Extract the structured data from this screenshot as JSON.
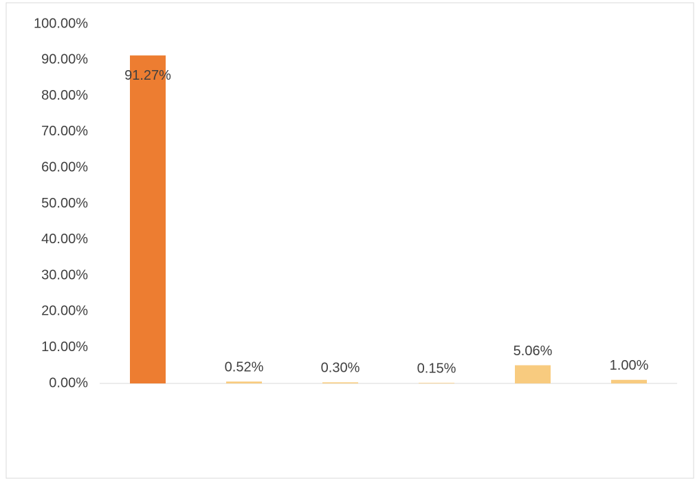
{
  "chart_data": {
    "type": "bar",
    "categories": [
      null,
      null,
      null,
      null,
      null,
      null
    ],
    "values": [
      91.27,
      0.52,
      0.3,
      0.15,
      5.06,
      1.0
    ],
    "value_labels": [
      "91.27%",
      "0.52%",
      "0.30%",
      "0.15%",
      "5.06%",
      "1.00%"
    ],
    "colors": [
      "#ed7d31",
      "#f8cb7f",
      "#f8cb7f",
      "#f8cb7f",
      "#f8cb7f",
      "#f8cb7f"
    ],
    "ylim": [
      0,
      100
    ],
    "yticks": [
      {
        "value": 0,
        "label": "0.00%"
      },
      {
        "value": 10,
        "label": "10.00%"
      },
      {
        "value": 20,
        "label": "20.00%"
      },
      {
        "value": 30,
        "label": "30.00%"
      },
      {
        "value": 40,
        "label": "40.00%"
      },
      {
        "value": 50,
        "label": "50.00%"
      },
      {
        "value": 60,
        "label": "60.00%"
      },
      {
        "value": 70,
        "label": "70.00%"
      },
      {
        "value": 80,
        "label": "80.00%"
      },
      {
        "value": 90,
        "label": "90.00%"
      },
      {
        "value": 100,
        "label": "100.00%"
      }
    ],
    "grid": false
  }
}
